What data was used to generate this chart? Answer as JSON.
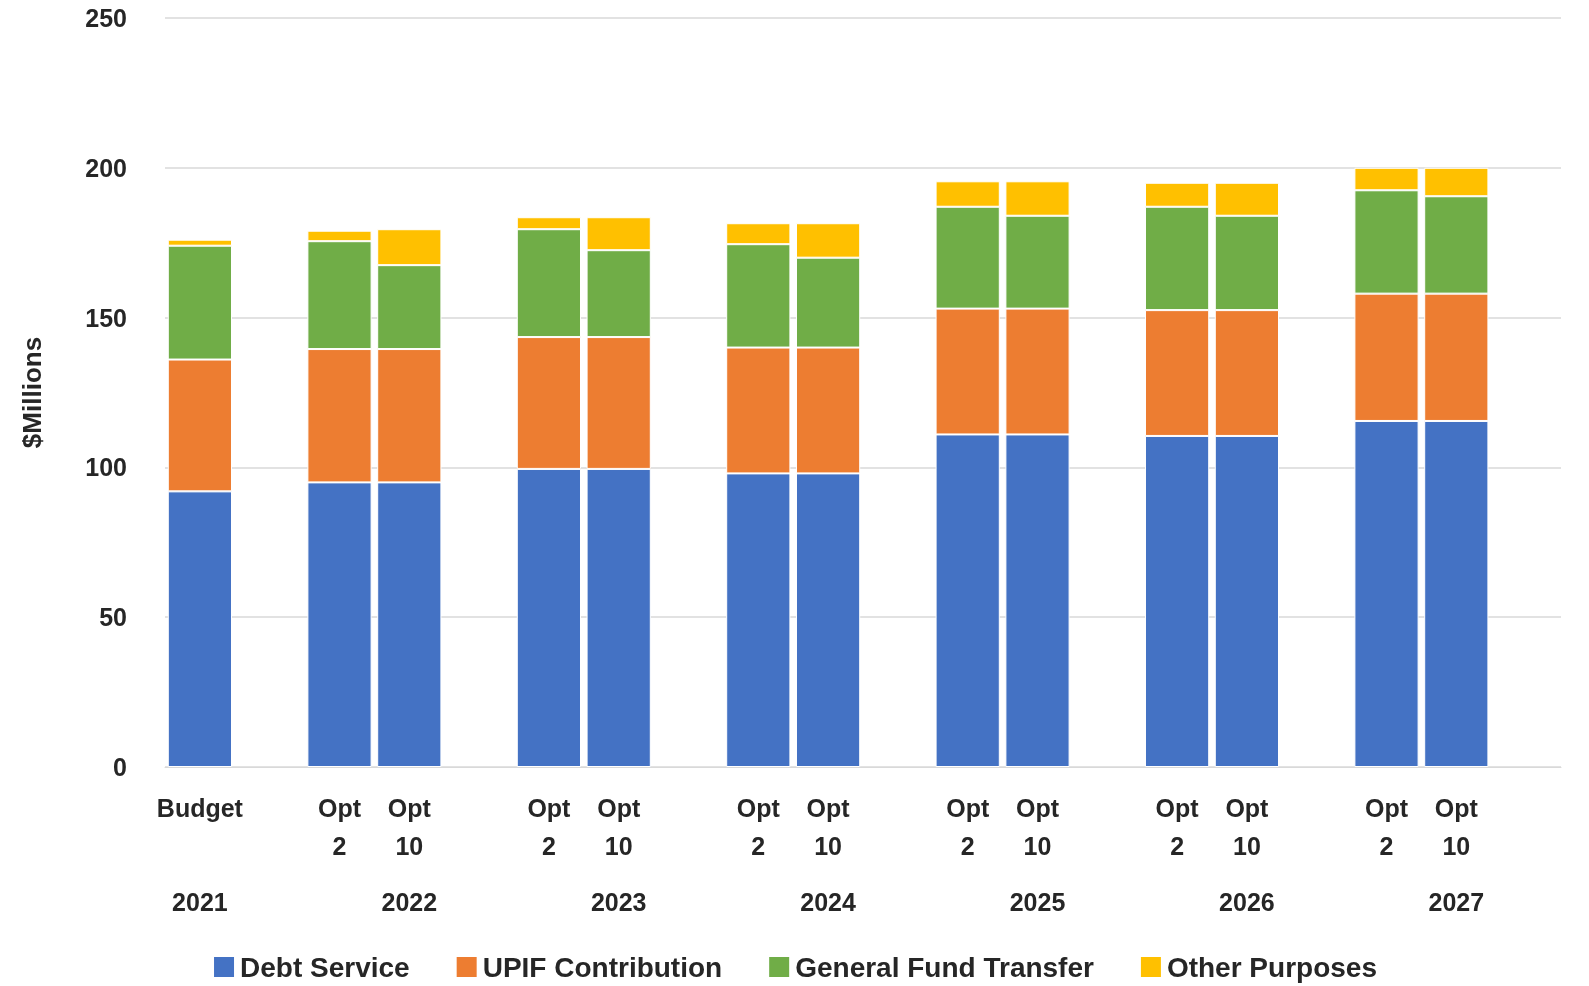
{
  "chart_data": {
    "type": "bar",
    "stacked": true,
    "ylabel": "$Millions",
    "categories": [
      "Budget",
      null,
      "Opt 2",
      "Opt 10",
      null,
      "Opt 2",
      "Opt 10",
      null,
      "Opt 2",
      "Opt 10",
      null,
      "Opt 2",
      "Opt 10",
      null,
      "Opt 2",
      "Opt 10",
      null,
      "Opt 2",
      "Opt 10",
      null
    ],
    "series": [
      {
        "name": "Debt Service",
        "color": "#4472c4",
        "values": [
          92,
          null,
          95,
          95,
          null,
          99.5,
          99.5,
          null,
          98,
          98,
          null,
          111,
          111,
          null,
          110.5,
          110.5,
          null,
          115.5,
          115.5,
          null
        ]
      },
      {
        "name": "UPIF Contribution",
        "color": "#ed7d31",
        "values": [
          44,
          null,
          44.5,
          44.5,
          null,
          44,
          44,
          null,
          42,
          42,
          null,
          42,
          42,
          null,
          42,
          42,
          null,
          42.5,
          42.5,
          null
        ]
      },
      {
        "name": "General Fund Transfer",
        "color": "#70ad47",
        "values": [
          38,
          null,
          36,
          28,
          null,
          36,
          29,
          null,
          34.5,
          30,
          null,
          34,
          31,
          null,
          34.5,
          31.5,
          null,
          34.5,
          32.5,
          null
        ]
      },
      {
        "name": "Other Purposes",
        "color": "#ffc000",
        "values": [
          2,
          null,
          3.5,
          12,
          null,
          4,
          11,
          null,
          7,
          11.5,
          null,
          8.5,
          11.5,
          null,
          8,
          11,
          null,
          7.5,
          9.5,
          null
        ]
      }
    ],
    "annotations": [
      "2021",
      "2022",
      "2023",
      "2024",
      "2025",
      "2026",
      "2027"
    ],
    "ylim": [
      0,
      250
    ],
    "yticks": [
      0,
      50,
      100,
      150,
      200,
      250
    ],
    "grid": "y",
    "legend": "bottom"
  }
}
